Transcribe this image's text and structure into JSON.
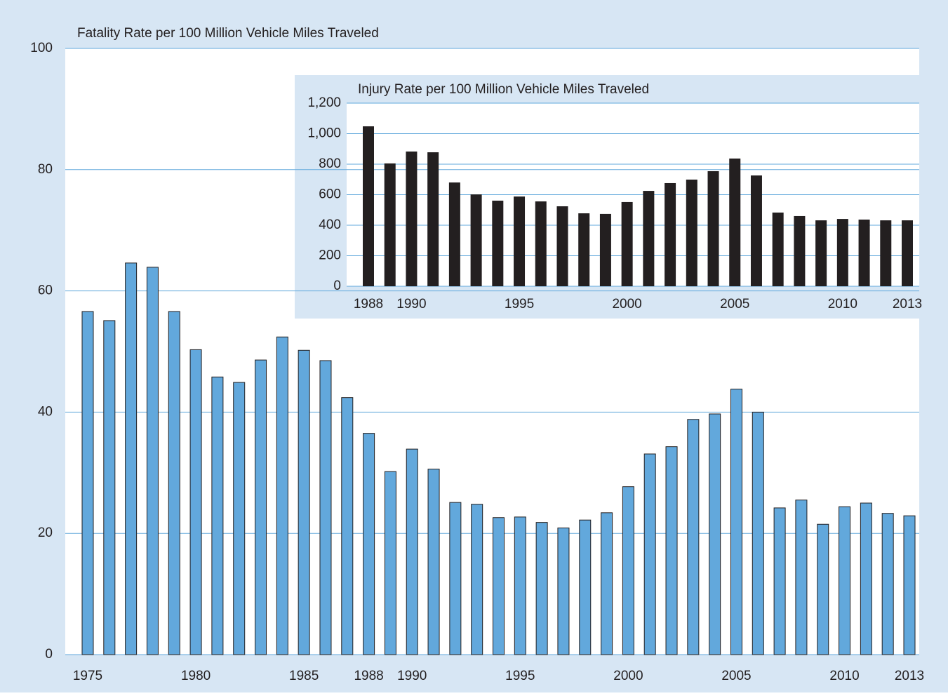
{
  "chart_data": [
    {
      "type": "bar",
      "title": "Fatality Rate per 100 Million Vehicle Miles Traveled",
      "categories": [
        "1975",
        null,
        null,
        null,
        null,
        "1980",
        null,
        null,
        null,
        null,
        "1985",
        null,
        null,
        "1988",
        null,
        "1990",
        null,
        null,
        null,
        null,
        "1995",
        null,
        null,
        null,
        null,
        "2000",
        null,
        null,
        null,
        null,
        "2005",
        null,
        null,
        null,
        null,
        "2010",
        null,
        null,
        "2013"
      ],
      "values": [
        56.6,
        55.1,
        64.6,
        63.9,
        56.6,
        50.3,
        45.8,
        44.9,
        48.6,
        52.4,
        50.2,
        48.5,
        42.4,
        36.5,
        30.2,
        33.9,
        30.6,
        25.1,
        24.8,
        22.6,
        22.7,
        21.8,
        20.9,
        22.2,
        23.4,
        27.7,
        33.1,
        34.3,
        38.8,
        39.7,
        43.8,
        40.0,
        24.2,
        25.5,
        21.5,
        24.4,
        25.0,
        23.3,
        22.9
      ],
      "color": "#62a8dc",
      "ylim": [
        0,
        100
      ],
      "yticks": [
        0,
        20,
        40,
        60,
        80,
        100
      ],
      "grid": true
    },
    {
      "type": "bar",
      "title": "Injury Rate per 100 Million Vehicle Miles Traveled",
      "categories": [
        "1988",
        null,
        "1990",
        null,
        null,
        null,
        null,
        "1995",
        null,
        null,
        null,
        null,
        "2000",
        null,
        null,
        null,
        null,
        "2005",
        null,
        null,
        null,
        null,
        "2010",
        null,
        null,
        "2013"
      ],
      "values": [
        1048,
        805,
        883,
        878,
        680,
        602,
        561,
        588,
        556,
        524,
        478,
        474,
        552,
        625,
        676,
        699,
        754,
        837,
        726,
        483,
        460,
        432,
        441,
        437,
        432,
        432
      ],
      "color": "#231f20",
      "ylim": [
        0,
        1200
      ],
      "yticks": [
        0,
        200,
        400,
        600,
        800,
        {
          "value": 1000,
          "label": "1,000"
        },
        {
          "value": 1200,
          "label": "1,200"
        }
      ],
      "grid": true
    }
  ]
}
